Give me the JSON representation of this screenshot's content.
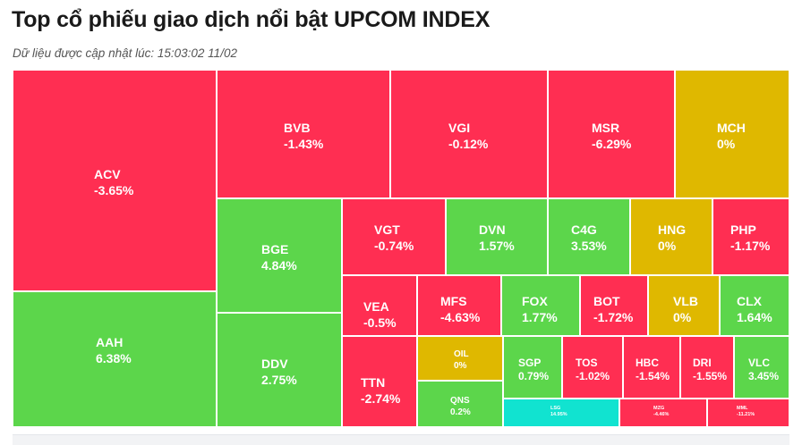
{
  "header": {
    "title": "Top cổ phiếu giao dịch nổi bật UPCOM INDEX",
    "updated_prefix": "Dữ liệu được cập nhật lúc:",
    "updated_time": "15:03:02 11/02"
  },
  "colors": {
    "down": "#ff2e52",
    "up": "#5cd64b",
    "flat": "#dfb800",
    "ceiling": "#11e3d0",
    "floor": "#ff2e52"
  },
  "chart_data": {
    "type": "treemap",
    "title": "Top cổ phiếu giao dịch nổi bật UPCOM INDEX",
    "items": [
      {
        "symbol": "ACV",
        "change": "-3.65%",
        "status": "down"
      },
      {
        "symbol": "AAH",
        "change": "6.38%",
        "status": "up"
      },
      {
        "symbol": "BVB",
        "change": "-1.43%",
        "status": "down"
      },
      {
        "symbol": "VGI",
        "change": "-0.12%",
        "status": "down"
      },
      {
        "symbol": "MSR",
        "change": "-6.29%",
        "status": "down"
      },
      {
        "symbol": "MCH",
        "change": "0%",
        "status": "flat"
      },
      {
        "symbol": "BGE",
        "change": "4.84%",
        "status": "up"
      },
      {
        "symbol": "DDV",
        "change": "2.75%",
        "status": "up"
      },
      {
        "symbol": "VGT",
        "change": "-0.74%",
        "status": "down"
      },
      {
        "symbol": "DVN",
        "change": "1.57%",
        "status": "up"
      },
      {
        "symbol": "C4G",
        "change": "3.53%",
        "status": "up"
      },
      {
        "symbol": "HNG",
        "change": "0%",
        "status": "flat"
      },
      {
        "symbol": "PHP",
        "change": "-1.17%",
        "status": "down"
      },
      {
        "symbol": "VEA",
        "change": "-0.5%",
        "status": "down"
      },
      {
        "symbol": "TTN",
        "change": "-2.74%",
        "status": "down"
      },
      {
        "symbol": "MFS",
        "change": "-4.63%",
        "status": "down"
      },
      {
        "symbol": "FOX",
        "change": "1.77%",
        "status": "up"
      },
      {
        "symbol": "BOT",
        "change": "-1.72%",
        "status": "down"
      },
      {
        "symbol": "VLB",
        "change": "0%",
        "status": "flat"
      },
      {
        "symbol": "CLX",
        "change": "1.64%",
        "status": "up"
      },
      {
        "symbol": "OIL",
        "change": "0%",
        "status": "flat"
      },
      {
        "symbol": "QNS",
        "change": "0.2%",
        "status": "up"
      },
      {
        "symbol": "SGP",
        "change": "0.79%",
        "status": "up"
      },
      {
        "symbol": "TOS",
        "change": "-1.02%",
        "status": "down"
      },
      {
        "symbol": "HBC",
        "change": "-1.54%",
        "status": "down"
      },
      {
        "symbol": "DRI",
        "change": "-1.55%",
        "status": "down"
      },
      {
        "symbol": "VLC",
        "change": "3.45%",
        "status": "up"
      },
      {
        "symbol": "LSG",
        "change": "14.95%",
        "status": "ceiling"
      },
      {
        "symbol": "MZG",
        "change": "-4.46%",
        "status": "down"
      },
      {
        "symbol": "MML",
        "change": "-11.21%",
        "status": "floor"
      }
    ]
  }
}
